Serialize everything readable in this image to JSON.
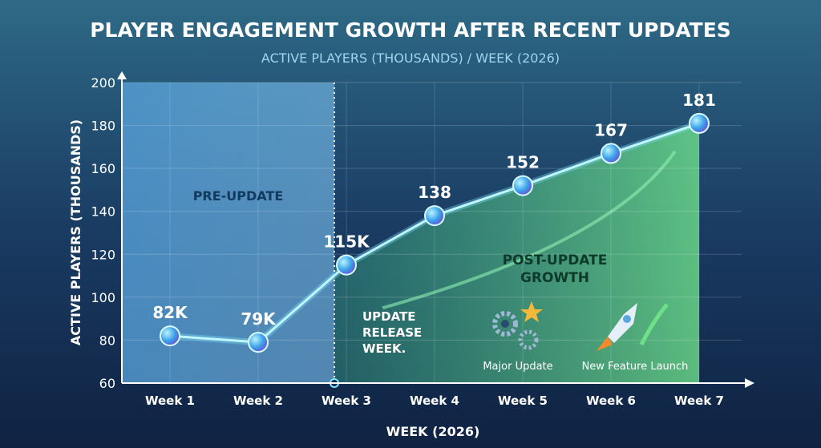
{
  "chart_data": {
    "type": "line",
    "title": "PLAYER ENGAGEMENT GROWTH AFTER RECENT UPDATES",
    "subtitle": "ACTIVE PLAYERS (THOUSANDS) / WEEK (2026)",
    "xlabel": "WEEK (2026)",
    "ylabel": "ACTIVE PLAYERS (THOUSANDS)",
    "categories": [
      "Week 1",
      "Week 2",
      "Week 3",
      "Week 4",
      "Week 5",
      "Week 6",
      "Week 7"
    ],
    "values": [
      82,
      79,
      115,
      138,
      152,
      167,
      181
    ],
    "data_labels": [
      "82K",
      "79K",
      "115K",
      "138",
      "152",
      "167",
      "181"
    ],
    "ylim": [
      60,
      200
    ],
    "yticks": [
      60,
      80,
      100,
      120,
      140,
      160,
      180,
      200
    ],
    "grid": true,
    "regions": [
      {
        "label": "PRE-UPDATE",
        "from": "Week 1",
        "to": "Week 3",
        "color": "#6fb3e6"
      },
      {
        "label": "POST-UPDATE GROWTH",
        "from": "Week 3",
        "to": "Week 7",
        "color": "#5fd27a"
      }
    ],
    "annotations": {
      "release": "UPDATE RELEASE WEEK.",
      "major_update": "Major Update",
      "new_feature": "New Feature Launch"
    },
    "colors": {
      "line": "#7fe6ff",
      "background": "#17325a",
      "title": "#ffffff",
      "subtitle": "#9fd6ee"
    }
  }
}
